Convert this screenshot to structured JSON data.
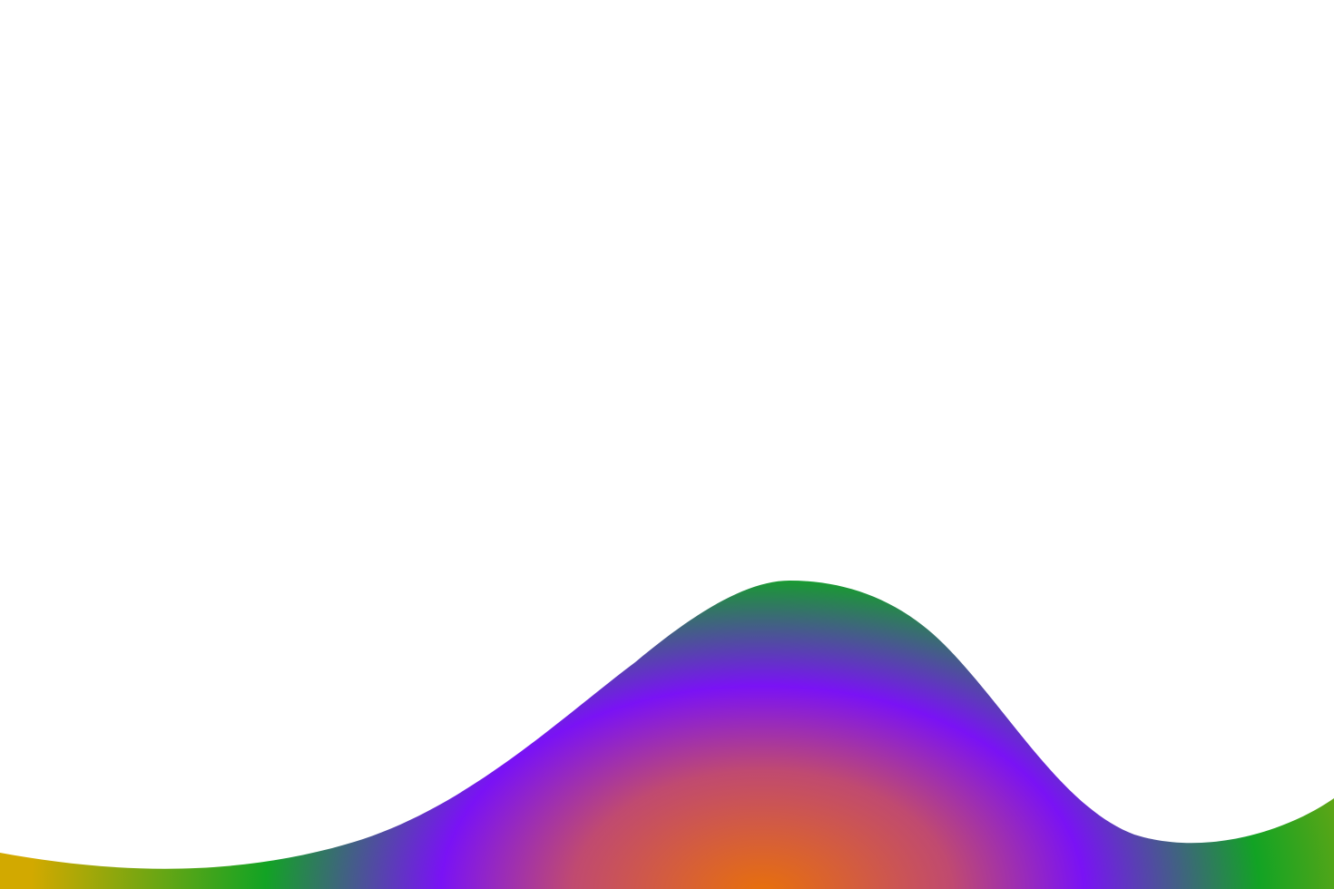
{
  "scene": {
    "background_color": "#ffffff",
    "shape": "gradient-wave",
    "gradient_colors": {
      "center": "#e8700a",
      "mid_warm": "#c04a70",
      "violet": "#7a12f5",
      "green": "#12a324",
      "edge_gold": "#d2a900"
    }
  }
}
